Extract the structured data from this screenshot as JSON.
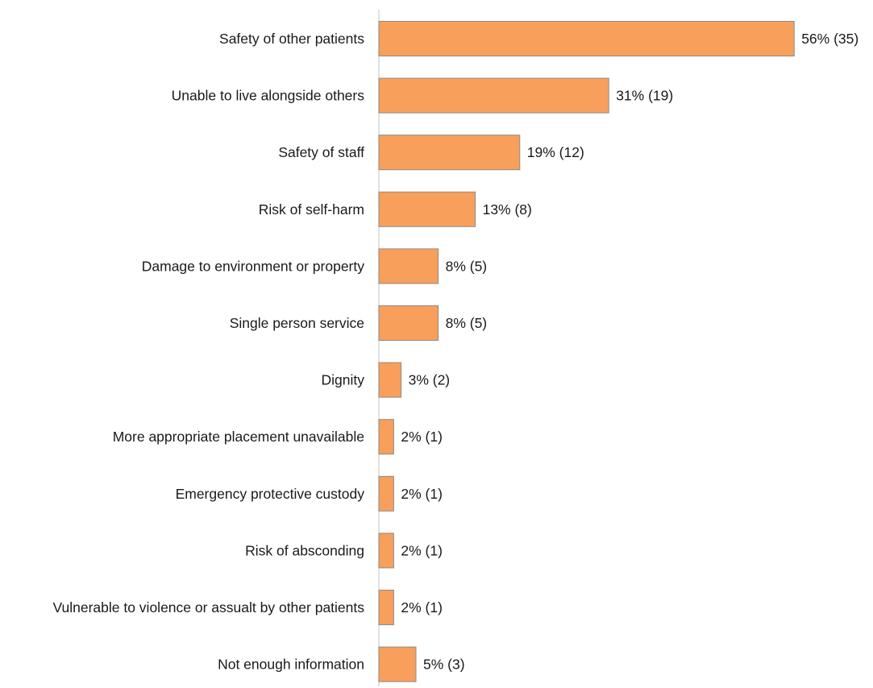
{
  "chart_data": {
    "type": "bar",
    "orientation": "horizontal",
    "categories": [
      "Safety of other patients",
      "Unable to live alongside others",
      "Safety of staff",
      "Risk of self-harm",
      "Damage to environment or property",
      "Single person service",
      "Dignity",
      "More appropriate placement unavailable",
      "Emergency protective custody",
      "Risk of absconding",
      "Vulnerable to violence or assualt by other patients",
      "Not enough information"
    ],
    "values": [
      56,
      31,
      19,
      13,
      8,
      8,
      3,
      2,
      2,
      2,
      2,
      5
    ],
    "counts": [
      35,
      19,
      12,
      8,
      5,
      5,
      2,
      1,
      1,
      1,
      1,
      3
    ],
    "data_labels": [
      "56% (35)",
      "31% (19)",
      "19% (12)",
      "13% (8)",
      "8% (5)",
      "8% (5)",
      "3% (2)",
      "2% (1)",
      "2% (1)",
      "2% (1)",
      "2% (1)",
      "5% (3)"
    ],
    "unit": "%",
    "xlim": [
      0,
      60
    ],
    "grid": false,
    "legend": "none",
    "title": "",
    "xlabel": "",
    "ylabel": "",
    "colors": {
      "bar_fill": "#f79f5b",
      "bar_stroke": "#8c8c8c",
      "axis": "#d9d9d9",
      "text": "#1a1a1a"
    }
  }
}
